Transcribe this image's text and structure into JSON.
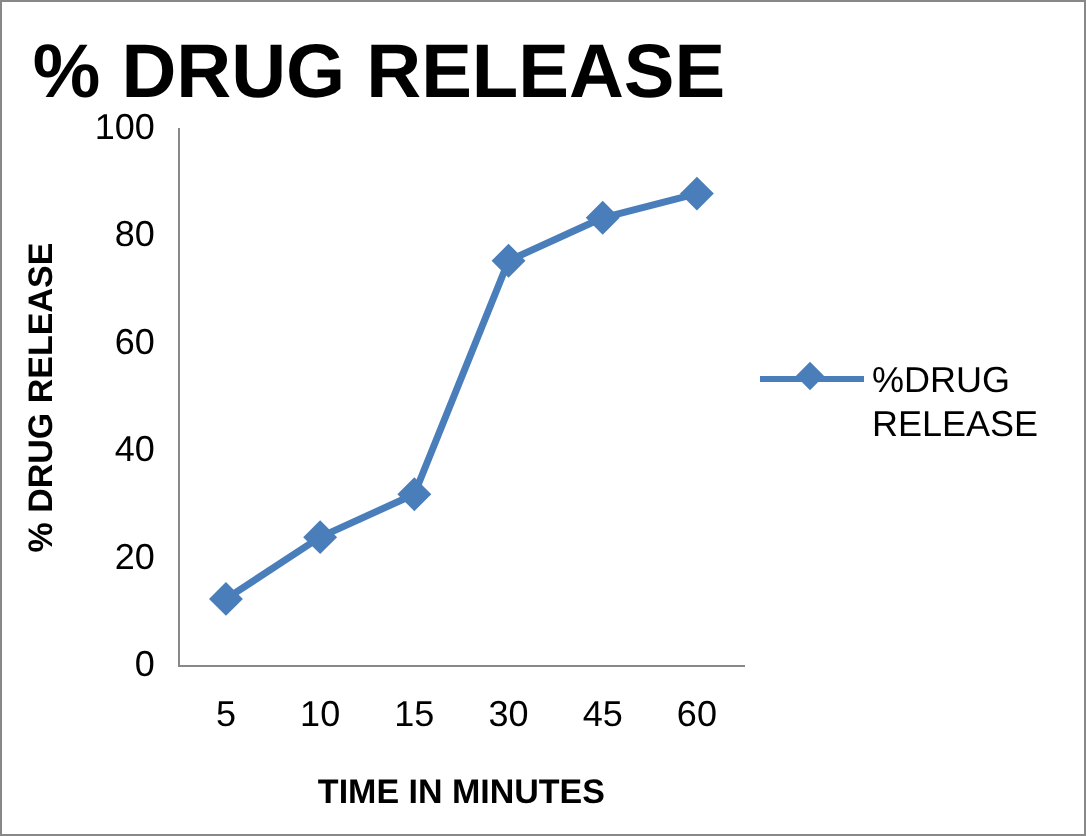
{
  "chart_data": {
    "type": "line",
    "title": "% DRUG RELEASE",
    "xlabel": "TIME IN MINUTES",
    "ylabel": "% DRUG RELEASE",
    "categories": [
      "5",
      "10",
      "15",
      "30",
      "45",
      "60"
    ],
    "series": [
      {
        "name": "%DRUG RELEASE",
        "color": "#4a7ebb",
        "values": [
          12.5,
          24,
          32,
          75.5,
          83.5,
          88
        ]
      }
    ],
    "ylim": [
      0,
      100
    ],
    "yticks": [
      0,
      20,
      40,
      60,
      80,
      100
    ],
    "grid": false,
    "legend": "right",
    "marker": "diamond",
    "line_style": "solid"
  }
}
